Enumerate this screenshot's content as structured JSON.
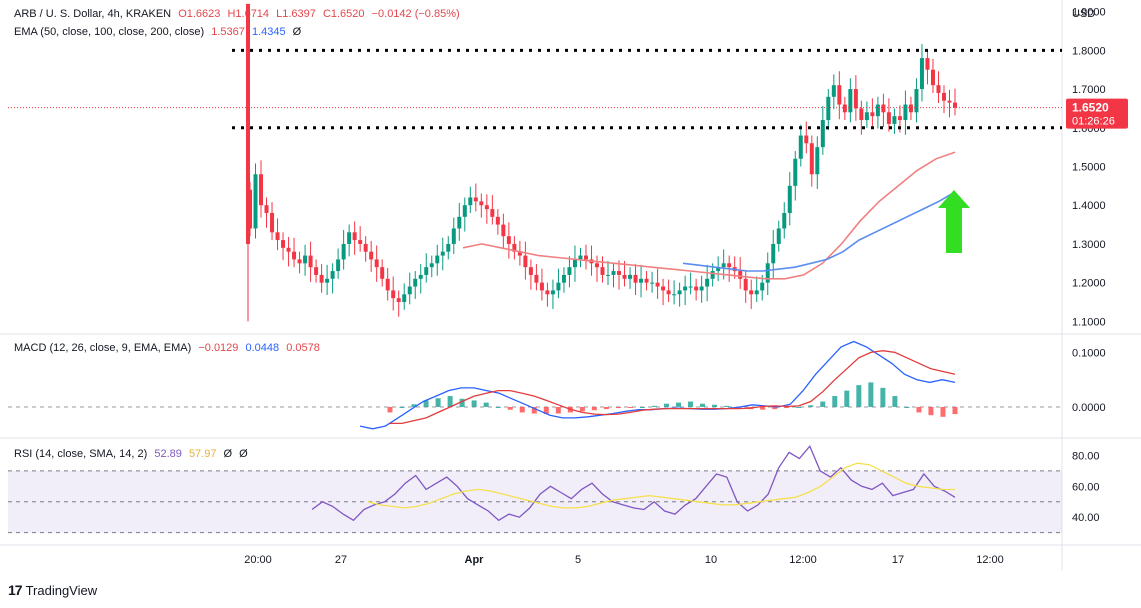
{
  "header": {
    "symbol": "ARB / U. S. Dollar, 4h, KRAKEN",
    "open": "O1.6623",
    "high": "H1.6714",
    "low": "L1.6397",
    "close": "C1.6520",
    "change": "−0.0142 (−0.85%)",
    "ema_label": "EMA (50, close, 100, close, 200, close)",
    "ema_val1": "1.5367",
    "ema_val2": "1.4345",
    "ema_val3": "Ø",
    "currency": "USD"
  },
  "price_badge": {
    "value": "1.6520",
    "countdown": "01:26:26"
  },
  "macd_legend": {
    "label": "MACD (12, 26, close, 9, EMA, EMA)",
    "hist": "−0.0129",
    "macd": "0.0448",
    "signal": "0.0578"
  },
  "rsi_legend": {
    "label": "RSI (14, close, SMA, 14, 2)",
    "rsi": "52.89",
    "sma": "57.97",
    "x1": "Ø",
    "x2": "Ø"
  },
  "footer": {
    "brand": "TradingView"
  },
  "colors": {
    "up": "#089981",
    "down": "#f23645",
    "ema_red": "#f08080",
    "ema_blue": "#5b8def",
    "macd_line": "#2962ff",
    "signal_line": "#e23b3b",
    "rsi_line": "#7e57c2",
    "rsi_sma": "#f5e04c",
    "arrow": "#33dd22"
  },
  "chart_data": [
    {
      "type": "candlestick",
      "title": "ARB / U. S. Dollar, 4h, KRAKEN",
      "ylabel": "USD",
      "ylim": [
        1.07,
        1.93
      ],
      "y_ticks": [
        "1.9000",
        "1.8000",
        "1.7000",
        "1.6000",
        "1.5000",
        "1.4000",
        "1.3000",
        "1.2000",
        "1.1000"
      ],
      "x_ticks": [
        "20:00",
        "27",
        "Apr",
        "5",
        "10",
        "12:00",
        "17",
        "12:00"
      ],
      "horizontal_levels": [
        1.8,
        1.6
      ],
      "last_price": 1.652,
      "close_series": [
        1.34,
        1.48,
        1.4,
        1.38,
        1.33,
        1.31,
        1.29,
        1.28,
        1.26,
        1.25,
        1.27,
        1.24,
        1.22,
        1.2,
        1.21,
        1.23,
        1.26,
        1.3,
        1.33,
        1.31,
        1.3,
        1.28,
        1.26,
        1.24,
        1.21,
        1.18,
        1.16,
        1.15,
        1.17,
        1.19,
        1.21,
        1.22,
        1.24,
        1.25,
        1.27,
        1.28,
        1.3,
        1.34,
        1.37,
        1.4,
        1.42,
        1.41,
        1.4,
        1.39,
        1.37,
        1.35,
        1.32,
        1.3,
        1.28,
        1.27,
        1.24,
        1.22,
        1.2,
        1.18,
        1.17,
        1.18,
        1.2,
        1.22,
        1.24,
        1.26,
        1.27,
        1.26,
        1.25,
        1.24,
        1.22,
        1.22,
        1.23,
        1.22,
        1.21,
        1.22,
        1.2,
        1.21,
        1.2,
        1.2,
        1.19,
        1.18,
        1.17,
        1.17,
        1.18,
        1.19,
        1.19,
        1.18,
        1.19,
        1.21,
        1.23,
        1.24,
        1.25,
        1.24,
        1.23,
        1.21,
        1.18,
        1.17,
        1.18,
        1.2,
        1.25,
        1.3,
        1.34,
        1.38,
        1.45,
        1.52,
        1.58,
        1.56,
        1.48,
        1.55,
        1.62,
        1.68,
        1.71,
        1.66,
        1.64,
        1.7,
        1.65,
        1.62,
        1.64,
        1.63,
        1.66,
        1.64,
        1.61,
        1.63,
        1.62,
        1.66,
        1.64,
        1.7,
        1.78,
        1.75,
        1.71,
        1.69,
        1.67,
        1.665,
        1.652
      ],
      "ema_red": {
        "x_start": 0.385,
        "values": [
          1.29,
          1.3,
          1.29,
          1.28,
          1.27,
          1.265,
          1.26,
          1.255,
          1.25,
          1.245,
          1.24,
          1.235,
          1.23,
          1.225,
          1.22,
          1.215,
          1.21,
          1.21,
          1.22,
          1.25,
          1.3,
          1.36,
          1.41,
          1.45,
          1.49,
          1.52,
          1.537
        ]
      },
      "ema_blue": {
        "x_start": 0.555,
        "values": [
          1.25,
          1.245,
          1.24,
          1.235,
          1.23,
          1.23,
          1.235,
          1.24,
          1.25,
          1.26,
          1.28,
          1.31,
          1.33,
          1.35,
          1.37,
          1.39,
          1.41,
          1.4345
        ]
      }
    },
    {
      "type": "macd",
      "title": "MACD (12, 26, close, 9, EMA, EMA)",
      "ylim": [
        -0.055,
        0.13
      ],
      "y_ticks": [
        "0.1000",
        "0.0000"
      ],
      "macd": [
        -0.035,
        -0.04,
        -0.035,
        -0.02,
        -0.005,
        0.01,
        0.02,
        0.03,
        0.035,
        0.035,
        0.03,
        0.025,
        0.015,
        0.005,
        -0.005,
        -0.015,
        -0.02,
        -0.02,
        -0.018,
        -0.015,
        -0.012,
        -0.008,
        -0.005,
        -0.005,
        -0.003,
        -0.002,
        -0.003,
        -0.004,
        -0.004,
        -0.003,
        0.0,
        0.004,
        0.002,
        0.0,
        0.005,
        0.03,
        0.06,
        0.085,
        0.11,
        0.12,
        0.11,
        0.095,
        0.08,
        0.06,
        0.05,
        0.045,
        0.05,
        0.045
      ],
      "signal": [
        -0.03,
        -0.03,
        -0.025,
        -0.02,
        -0.01,
        0.0,
        0.01,
        0.02,
        0.025,
        0.03,
        0.03,
        0.025,
        0.02,
        0.012,
        0.004,
        -0.004,
        -0.01,
        -0.013,
        -0.014,
        -0.013,
        -0.01,
        -0.006,
        -0.004,
        -0.003,
        -0.003,
        -0.003,
        -0.003,
        -0.003,
        -0.003,
        -0.003,
        -0.002,
        0.001,
        0.002,
        0.001,
        0.002,
        0.01,
        0.028,
        0.05,
        0.07,
        0.09,
        0.1,
        0.103,
        0.1,
        0.09,
        0.08,
        0.07,
        0.065,
        0.06
      ],
      "histogram": [
        -0.01,
        0.0,
        0.005,
        0.012,
        0.016,
        0.02,
        0.015,
        0.012,
        0.008,
        0.0,
        -0.005,
        -0.01,
        -0.012,
        -0.013,
        -0.012,
        -0.01,
        -0.008,
        -0.006,
        -0.004,
        -0.002,
        -0.001,
        0.0,
        0.002,
        0.006,
        0.008,
        0.01,
        0.006,
        0.004,
        0.002,
        -0.002,
        -0.004,
        -0.005,
        -0.004,
        -0.002,
        0.0,
        0.003,
        0.01,
        0.02,
        0.03,
        0.04,
        0.045,
        0.035,
        0.02,
        0.0,
        -0.01,
        -0.015,
        -0.018,
        -0.013
      ]
    },
    {
      "type": "line",
      "title": "RSI (14, close, SMA, 14, 2)",
      "ylim": [
        22,
        90
      ],
      "y_ticks": [
        "80.00",
        "60.00",
        "40.00"
      ],
      "bands": [
        70,
        50,
        30
      ],
      "rsi": [
        45,
        50,
        47,
        42,
        38,
        45,
        48,
        50,
        55,
        62,
        67,
        58,
        62,
        66,
        60,
        52,
        48,
        44,
        38,
        42,
        40,
        46,
        55,
        60,
        56,
        52,
        58,
        62,
        55,
        50,
        48,
        46,
        45,
        50,
        44,
        42,
        48,
        52,
        60,
        68,
        66,
        50,
        44,
        48,
        55,
        72,
        82,
        78,
        86,
        70,
        66,
        72,
        64,
        60,
        58,
        62,
        54,
        56,
        58,
        68,
        60,
        57,
        52.89
      ],
      "rsi_sma": [
        50,
        48,
        47,
        46,
        47,
        49,
        52,
        55,
        57,
        58,
        57,
        55,
        53,
        51,
        49,
        47,
        46,
        46,
        47,
        49,
        51,
        52,
        53,
        54,
        53,
        52,
        51,
        50,
        49,
        48,
        48,
        49,
        50,
        51,
        52,
        53,
        56,
        60,
        66,
        72,
        75,
        74,
        70,
        66,
        62,
        60,
        59,
        58,
        57.97
      ]
    }
  ]
}
